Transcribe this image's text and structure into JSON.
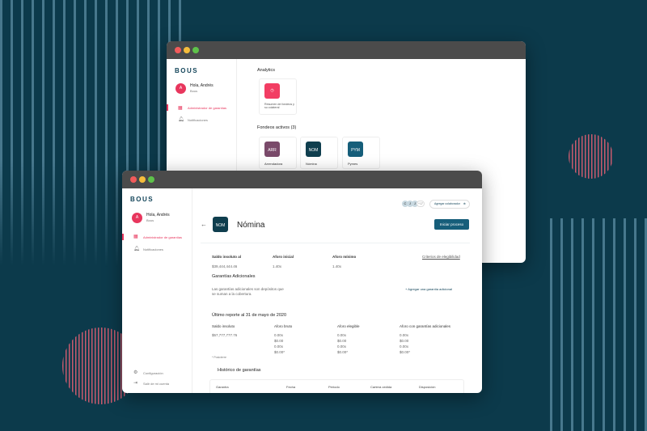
{
  "colors": {
    "background": "#0c3a4b",
    "accent": "#e8365d",
    "primary": "#13455a"
  },
  "back_window": {
    "logo": "BOUS",
    "user_initial": "A",
    "user_name": "Hola, Andrés",
    "user_org": "Bous",
    "nav": [
      {
        "label": "Administrador de garantías",
        "icon": "grid-icon"
      },
      {
        "label": "Notificaciones",
        "icon": "bell-icon"
      }
    ],
    "analytics_title": "Analytics",
    "analytics_card": "Resumen de fondeos y su colateral",
    "fondeos_title": "Fondeos activos (3)",
    "fondeos": [
      {
        "code": "ARR",
        "label": "Arrendadora",
        "color": "#7a4a6a"
      },
      {
        "code": "NOM",
        "label": "Nómina",
        "color": "#0f3e4e"
      },
      {
        "code": "PYM",
        "label": "Pymes",
        "color": "#165e7a"
      }
    ]
  },
  "front_window": {
    "logo": "BOUS",
    "user_initial": "A",
    "user_name": "Hola, Andrés",
    "user_org": "Bous",
    "nav": [
      {
        "label": "Administrador de garantías",
        "icon": "grid-icon"
      },
      {
        "label": "Notificaciones",
        "icon": "bell-icon"
      }
    ],
    "footer_nav": [
      {
        "label": "Configuración",
        "icon": "gear-icon"
      },
      {
        "label": "Salir de mi cuenta",
        "icon": "logout-icon"
      }
    ],
    "collaborators": [
      "C",
      "J",
      "J"
    ],
    "collaborators_more": "+17",
    "add_collaborator": "Agregar colaborador",
    "tile_code": "NOM",
    "title": "Nómina",
    "start_button": "Iniciar proceso",
    "summary": {
      "headers": [
        "Saldo insoluto al",
        "Aforo inicial",
        "Aforo mínimo"
      ],
      "values": [
        "$39,444,444.46",
        "1.40x",
        "1.40x"
      ],
      "criteria_link": "Criterios de elegibilidad"
    },
    "garantias_title": "Garantías Adicionales",
    "garantias_desc": "Las garantías adicionales son depósitos que se suman a la cobertura.",
    "add_garantia": "+ Agregar una garantía adicional",
    "report_title": "Último reporte al 31 de mayo de 2020",
    "report_headers": [
      "Saldo insoluto",
      "Aforo bruto",
      "Aforo elegible",
      "Aforo con garantías adicionales"
    ],
    "report_saldo": "$57,777,777.76",
    "report_cols": [
      [
        "0.00x",
        "$0.00",
        "0.00x",
        "$0.00*"
      ],
      [
        "0.00x",
        "$0.00",
        "0.00x",
        "$0.00*"
      ],
      [
        "0.00x",
        "$0.00",
        "0.00x",
        "$0.00*"
      ]
    ],
    "footnote": "* Posicierre",
    "historico_title": "Histórico de garantías",
    "table_headers": [
      "Garantía",
      "Fecha",
      "Periodo",
      "Cartera cedida",
      "Disposición"
    ]
  }
}
